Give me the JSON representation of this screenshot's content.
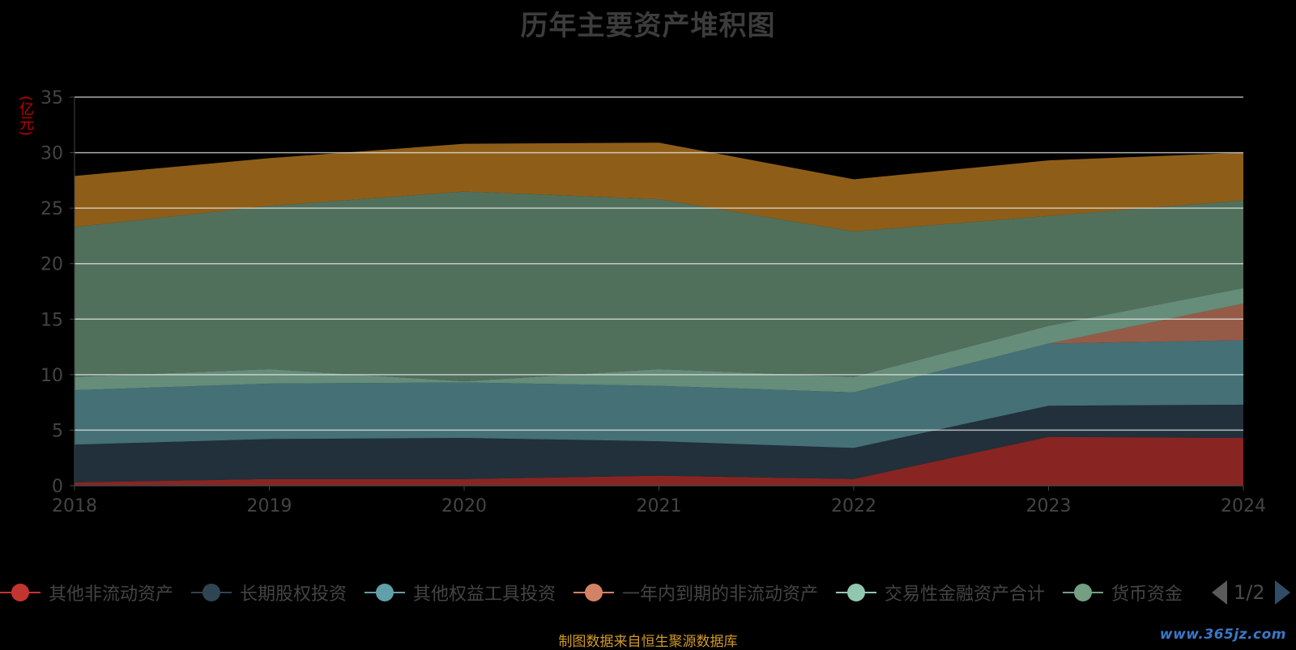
{
  "page": {
    "title": "历年主要资产堆积图",
    "source": "制图数据来自恒生聚源数据库",
    "watermark": "www.365jz.com",
    "pager": "1/2"
  },
  "colors": {
    "background": "#000000",
    "title": "#3c3c3c",
    "axis_text": "#444444",
    "unit_text": "#c00000",
    "source_text": "#d09a28",
    "watermark": "#3a78c8",
    "gridline": "#e8e8e8"
  },
  "chart_data": {
    "type": "area",
    "stacked": true,
    "title": "历年主要资产堆积图",
    "ylabel": "(亿元)",
    "xlabel": "",
    "x": [
      "2018",
      "2019",
      "2020",
      "2021",
      "2022",
      "2023",
      "2024"
    ],
    "ylim": [
      0,
      35
    ],
    "yticks": [
      0,
      5,
      10,
      15,
      20,
      25,
      30,
      35
    ],
    "grid": true,
    "legend_position": "bottom",
    "series": [
      {
        "name": "其他非流动资产",
        "color": "#c23531",
        "values": [
          0.3,
          0.6,
          0.6,
          0.9,
          0.6,
          4.4,
          4.3
        ]
      },
      {
        "name": "长期股权投资",
        "color": "#2f4554",
        "values": [
          3.4,
          3.6,
          3.7,
          3.1,
          2.8,
          2.8,
          3.0
        ]
      },
      {
        "name": "其他权益工具投资",
        "color": "#61a0a8",
        "values": [
          4.9,
          5.0,
          5.0,
          5.0,
          5.0,
          5.6,
          5.8
        ]
      },
      {
        "name": "一年内到期的非流动资产",
        "color": "#d48265",
        "values": [
          0,
          0,
          0,
          0,
          0,
          0,
          3.3
        ]
      },
      {
        "name": "交易性金融资产合计",
        "color": "#91c7ae",
        "values": [
          1.2,
          1.3,
          0.1,
          1.5,
          1.4,
          1.6,
          1.4
        ]
      },
      {
        "name": "货币资金",
        "color": "#749f83",
        "values": [
          13.5,
          14.7,
          17.1,
          15.3,
          13.1,
          9.9,
          7.9
        ]
      },
      {
        "name": "",
        "color": "#ca8622",
        "values": [
          4.6,
          4.3,
          4.3,
          5.1,
          4.7,
          5.0,
          4.3
        ]
      }
    ]
  }
}
